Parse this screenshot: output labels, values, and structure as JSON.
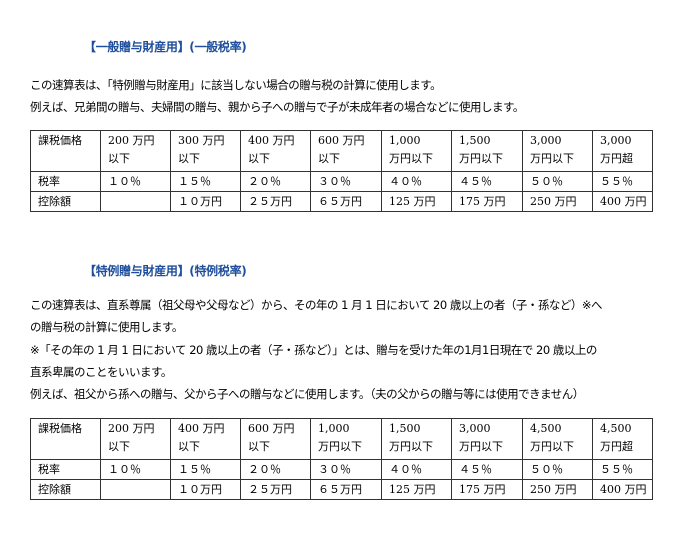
{
  "section1": {
    "heading": "【一般贈与財産用】(一般税率)",
    "lines": [
      "この速算表は、「特例贈与財産用」に該当しない場合の贈与税の計算に使用します。",
      "例えば、兄弟間の贈与、夫婦間の贈与、親から子への贈与で子が未成年者の場合などに使用します。"
    ],
    "table": {
      "columns": [
        {
          "label": "課税価格",
          "rate": "税率",
          "deduction": "控除額"
        },
        {
          "line1": "200 万円",
          "line2": "以下",
          "rate": "１０％",
          "deduction": ""
        },
        {
          "line1": "300 万円",
          "line2": "以下",
          "rate": "１５％",
          "deduction": "１０万円"
        },
        {
          "line1": "400 万円",
          "line2": "以下",
          "rate": "２０％",
          "deduction": "２５万円"
        },
        {
          "line1": "600 万円",
          "line2": "以下",
          "rate": "３０％",
          "deduction": "６５万円"
        },
        {
          "line1": "1,000",
          "line2": "万円以下",
          "rate": "４０％",
          "deduction": "125 万円"
        },
        {
          "line1": "1,500",
          "line2": "万円以下",
          "rate": "４５％",
          "deduction": "175 万円"
        },
        {
          "line1": "3,000",
          "line2": "万円以下",
          "rate": "５０％",
          "deduction": "250 万円"
        },
        {
          "line1": "3,000",
          "line2": "万円超",
          "rate": "５５％",
          "deduction": "400 万円"
        }
      ]
    }
  },
  "section2": {
    "heading": "【特例贈与財産用】(特例税率)",
    "lines": [
      "この速算表は、直系尊属（祖父母や父母など）から、その年の 1 月 1 日において 20 歳以上の者（子・孫など）※へ",
      "の贈与税の計算に使用します。",
      "※「その年の 1 月 1 日において 20 歳以上の者（子・孫など）」とは、贈与を受けた年の1月1日現在で 20 歳以上の",
      "直系卑属のことをいいます。",
      "例えば、祖父から孫への贈与、父から子への贈与などに使用します。（夫の父からの贈与等には使用できません）"
    ],
    "table": {
      "columns": [
        {
          "label": "課税価格",
          "rate": "税率",
          "deduction": "控除額"
        },
        {
          "line1": "200 万円",
          "line2": "以下",
          "rate": "１０％",
          "deduction": ""
        },
        {
          "line1": "400 万円",
          "line2": "以下",
          "rate": "１５％",
          "deduction": "１０万円"
        },
        {
          "line1": "600 万円",
          "line2": "以下",
          "rate": "２０％",
          "deduction": "２５万円"
        },
        {
          "line1": "1,000",
          "line2": "万円以下",
          "rate": "３０％",
          "deduction": "６５万円"
        },
        {
          "line1": "1,500",
          "line2": "万円以下",
          "rate": "４０％",
          "deduction": "125 万円"
        },
        {
          "line1": "3,000",
          "line2": "万円以下",
          "rate": "４５％",
          "deduction": "175 万円"
        },
        {
          "line1": "4,500",
          "line2": "万円以下",
          "rate": "５０％",
          "deduction": "250 万円"
        },
        {
          "line1": "4,500",
          "line2": "万円超",
          "rate": "５５％",
          "deduction": "400 万円"
        }
      ]
    }
  }
}
